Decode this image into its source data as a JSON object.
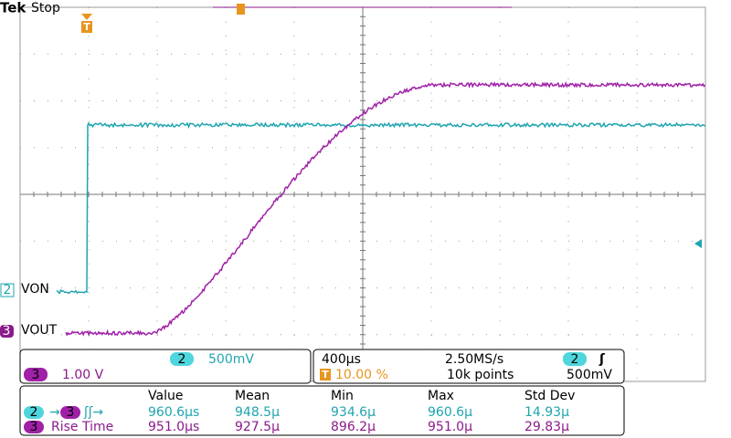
{
  "header": {
    "brand": "Tek",
    "status": "Stop"
  },
  "trigger_marker": "T",
  "channels": [
    {
      "number": "2",
      "label": "VON"
    },
    {
      "number": "3",
      "label": "VOUT"
    }
  ],
  "vertical": [
    {
      "channel": "2",
      "scale": "500mV"
    },
    {
      "channel": "3",
      "scale": "1.00 V"
    }
  ],
  "horizontal": {
    "time_div": "400µs",
    "sample_rate": "2.50MS/s",
    "trigger_channel": "2",
    "trigger_slope": "ʃ",
    "trigger_position": "10.00 %",
    "record_length": "10k points",
    "trigger_level": "500mV"
  },
  "measurements": {
    "columns": [
      "Value",
      "Mean",
      "Min",
      "Max",
      "Std Dev"
    ],
    "rows": [
      {
        "source": "2",
        "arrow": "→",
        "target": "3",
        "name": "ʃʃ→",
        "values": [
          "960.6µs",
          "948.5µ",
          "934.6µ",
          "960.6µ",
          "14.93µ"
        ]
      },
      {
        "source": "3",
        "name": "Rise Time",
        "values": [
          "951.0µs",
          "927.5µ",
          "896.2µ",
          "951.0µ",
          "29.83µ"
        ]
      }
    ]
  }
}
